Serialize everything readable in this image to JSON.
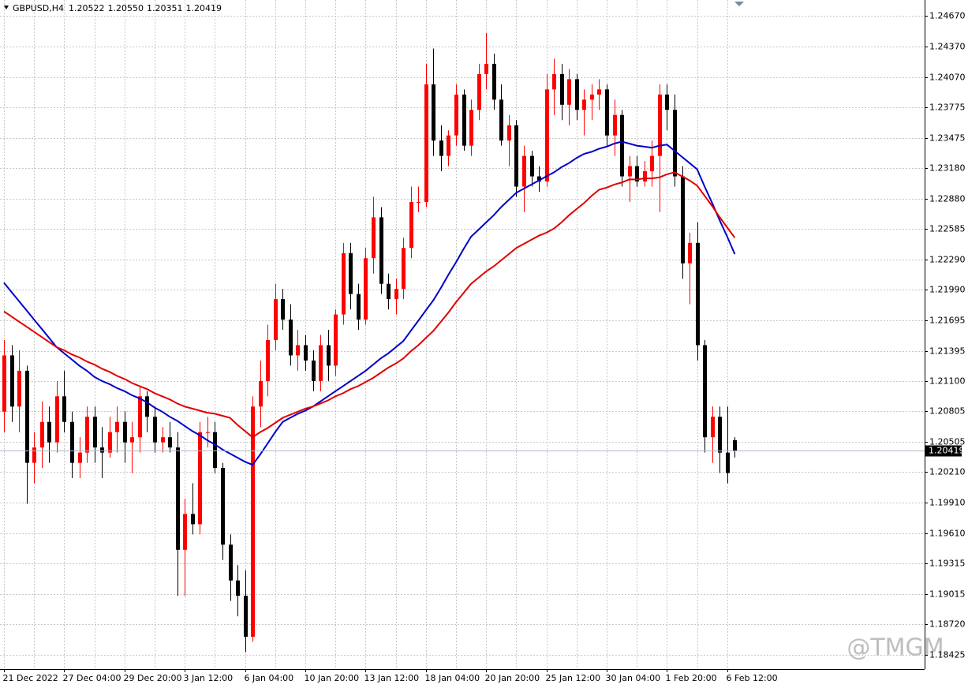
{
  "chart_data": {
    "type": "candlestick",
    "symbol": "GBPUSD,H4",
    "last_ohlc_labels": [
      "1.20522",
      "1.20550",
      "1.20351",
      "1.20419"
    ],
    "watermark": "@TMGM",
    "up_color": "#ff0000",
    "down_color": "#000000",
    "grid": true,
    "ylim": [
      1.18284,
      1.24824
    ],
    "yticks": [
      {
        "value": 1.2467,
        "label": "1.24670"
      },
      {
        "value": 1.2437,
        "label": "1.24370"
      },
      {
        "value": 1.2407,
        "label": "1.24070"
      },
      {
        "value": 1.23775,
        "label": "1.23775"
      },
      {
        "value": 1.23475,
        "label": "1.23475"
      },
      {
        "value": 1.2318,
        "label": "1.23180"
      },
      {
        "value": 1.2288,
        "label": "1.22880"
      },
      {
        "value": 1.22585,
        "label": "1.22585"
      },
      {
        "value": 1.2229,
        "label": "1.22290"
      },
      {
        "value": 1.2199,
        "label": "1.21990"
      },
      {
        "value": 1.21695,
        "label": "1.21695"
      },
      {
        "value": 1.21395,
        "label": "1.21395"
      },
      {
        "value": 1.211,
        "label": "1.21100"
      },
      {
        "value": 1.20805,
        "label": "1.20805"
      },
      {
        "value": 1.20505,
        "label": "1.20505"
      },
      {
        "value": 1.2021,
        "label": "1.20210"
      },
      {
        "value": 1.1991,
        "label": "1.19910"
      },
      {
        "value": 1.1961,
        "label": "1.19610"
      },
      {
        "value": 1.19315,
        "label": "1.19315"
      },
      {
        "value": 1.19015,
        "label": "1.19015"
      },
      {
        "value": 1.1872,
        "label": "1.18720"
      },
      {
        "value": 1.18425,
        "label": "1.18425"
      }
    ],
    "current_price": {
      "value": 1.20419,
      "label": "1.20419"
    },
    "categories": [
      "21 Dec 2022",
      null,
      null,
      null,
      null,
      null,
      null,
      null,
      "27 Dec 04:00",
      null,
      null,
      null,
      null,
      null,
      null,
      null,
      "29 Dec 20:00",
      null,
      null,
      null,
      null,
      null,
      null,
      null,
      "3 Jan 12:00",
      null,
      null,
      null,
      null,
      null,
      null,
      null,
      "6 Jan 04:00",
      null,
      null,
      null,
      null,
      null,
      null,
      null,
      "10 Jan 20:00",
      null,
      null,
      null,
      null,
      null,
      null,
      null,
      "13 Jan 12:00",
      null,
      null,
      null,
      null,
      null,
      null,
      null,
      "18 Jan 04:00",
      null,
      null,
      null,
      null,
      null,
      null,
      null,
      "20 Jan 20:00",
      null,
      null,
      null,
      null,
      null,
      null,
      null,
      "25 Jan 12:00",
      null,
      null,
      null,
      null,
      null,
      null,
      null,
      "30 Jan 04:00",
      null,
      null,
      null,
      null,
      null,
      null,
      null,
      "1 Feb 20:00",
      null,
      null,
      null,
      null,
      null,
      null,
      null,
      "6 Feb 12:00",
      null
    ],
    "open": [
      1.208,
      1.2135,
      1.2085,
      1.212,
      1.203,
      1.2045,
      1.207,
      1.205,
      1.2095,
      1.207,
      1.203,
      1.204,
      1.2075,
      1.2045,
      1.204,
      1.206,
      1.207,
      1.205,
      1.2055,
      1.2095,
      1.2075,
      1.205,
      1.2055,
      1.2045,
      1.1945,
      1.198,
      1.197,
      1.206,
      1.206,
      1.2025,
      1.195,
      1.1915,
      1.19,
      1.186,
      1.2085,
      1.211,
      1.215,
      1.219,
      1.217,
      1.2135,
      1.2145,
      1.213,
      1.211,
      1.2145,
      1.2125,
      1.2175,
      1.2235,
      1.2195,
      1.217,
      1.223,
      1.227,
      1.2205,
      1.219,
      1.22,
      1.224,
      1.2285,
      1.2285,
      1.24,
      1.2345,
      1.233,
      1.235,
      1.239,
      1.234,
      1.2375,
      1.241,
      1.242,
      1.2385,
      1.2345,
      1.236,
      1.23,
      1.233,
      1.231,
      1.2305,
      1.2395,
      1.241,
      1.238,
      1.2405,
      1.2375,
      1.2385,
      1.239,
      1.2395,
      1.235,
      1.237,
      1.231,
      1.232,
      1.2305,
      1.2315,
      1.233,
      1.239,
      1.2375,
      1.231,
      1.2225,
      1.2245,
      1.2145,
      1.2055,
      1.2075,
      1.204,
      1.20522
    ],
    "high": [
      1.215,
      1.2145,
      1.214,
      1.2125,
      1.206,
      1.209,
      1.2085,
      1.211,
      1.212,
      1.208,
      1.2055,
      1.2085,
      1.2085,
      1.2065,
      1.2075,
      1.2085,
      1.208,
      1.207,
      1.2105,
      1.21,
      1.2085,
      1.2065,
      1.207,
      1.206,
      1.1995,
      1.201,
      1.207,
      1.2075,
      1.207,
      1.203,
      1.196,
      1.193,
      1.1925,
      1.2095,
      1.213,
      1.2165,
      1.2205,
      1.22,
      1.2185,
      1.216,
      1.2155,
      1.214,
      1.2155,
      1.216,
      1.218,
      1.2245,
      1.2245,
      1.2205,
      1.224,
      1.229,
      1.228,
      1.2215,
      1.221,
      1.225,
      1.23,
      1.23,
      1.242,
      1.2435,
      1.236,
      1.2355,
      1.24,
      1.2395,
      1.2385,
      1.242,
      1.245,
      1.243,
      1.24,
      1.237,
      1.2365,
      1.234,
      1.2335,
      1.232,
      1.241,
      1.2425,
      1.242,
      1.2415,
      1.241,
      1.2395,
      1.24,
      1.2405,
      1.24,
      1.2385,
      1.2375,
      1.233,
      1.233,
      1.2325,
      1.2345,
      1.24,
      1.24,
      1.239,
      1.232,
      1.2255,
      1.2265,
      1.215,
      1.2085,
      1.2085,
      1.2085,
      1.2055
    ],
    "low": [
      1.206,
      1.207,
      1.206,
      1.199,
      1.201,
      1.2025,
      1.203,
      1.204,
      1.206,
      1.2015,
      1.2015,
      1.203,
      1.203,
      1.2015,
      1.2035,
      1.204,
      1.203,
      1.202,
      1.204,
      1.206,
      1.204,
      1.204,
      1.204,
      1.19,
      1.19,
      1.196,
      1.196,
      1.2045,
      1.202,
      1.1935,
      1.1895,
      1.188,
      1.1845,
      1.1855,
      1.2065,
      1.2095,
      1.214,
      1.216,
      1.2125,
      1.212,
      1.212,
      1.21,
      1.21,
      1.211,
      1.2115,
      1.2165,
      1.218,
      1.216,
      1.2165,
      1.2215,
      1.2195,
      1.218,
      1.2175,
      1.219,
      1.223,
      1.2275,
      1.228,
      1.233,
      1.2315,
      1.232,
      1.234,
      1.2335,
      1.233,
      1.2365,
      1.2395,
      1.2375,
      1.234,
      1.232,
      1.229,
      1.2275,
      1.23,
      1.2295,
      1.23,
      1.237,
      1.2365,
      1.236,
      1.2365,
      1.235,
      1.2365,
      1.2375,
      1.234,
      1.233,
      1.23,
      1.2285,
      1.23,
      1.23,
      1.23,
      1.2275,
      1.2355,
      1.23,
      1.221,
      1.2185,
      1.213,
      1.204,
      1.203,
      1.202,
      1.201,
      1.20351
    ],
    "close": [
      1.2135,
      1.2085,
      1.212,
      1.203,
      1.2045,
      1.207,
      1.205,
      1.2095,
      1.207,
      1.203,
      1.204,
      1.2075,
      1.2045,
      1.204,
      1.206,
      1.207,
      1.205,
      1.2055,
      1.2095,
      1.2075,
      1.205,
      1.2055,
      1.2045,
      1.1945,
      1.198,
      1.197,
      1.206,
      1.206,
      1.2025,
      1.195,
      1.1915,
      1.19,
      1.186,
      1.2085,
      1.211,
      1.215,
      1.219,
      1.217,
      1.2135,
      1.2145,
      1.213,
      1.211,
      1.2145,
      1.2125,
      1.2175,
      1.2235,
      1.2195,
      1.217,
      1.223,
      1.227,
      1.2205,
      1.219,
      1.22,
      1.224,
      1.2285,
      1.2285,
      1.24,
      1.2345,
      1.233,
      1.235,
      1.239,
      1.234,
      1.2375,
      1.241,
      1.242,
      1.2385,
      1.2345,
      1.236,
      1.23,
      1.233,
      1.231,
      1.2305,
      1.2395,
      1.241,
      1.238,
      1.2405,
      1.2375,
      1.2385,
      1.239,
      1.2395,
      1.235,
      1.237,
      1.231,
      1.232,
      1.2305,
      1.2315,
      1.233,
      1.239,
      1.2375,
      1.231,
      1.2225,
      1.2245,
      1.2145,
      1.2055,
      1.2075,
      1.204,
      1.202,
      1.20419
    ],
    "series": [
      {
        "color": "#0000c8",
        "values": [
          1.2206,
          1.2197,
          1.2188,
          1.2179,
          1.217,
          1.2161,
          1.2152,
          1.2143,
          1.2137,
          1.2131,
          1.2125,
          1.212,
          1.2114,
          1.211,
          1.2107,
          1.2103,
          1.21,
          1.2096,
          1.2093,
          1.2089,
          1.2084,
          1.208,
          1.2075,
          1.2071,
          1.2066,
          1.2061,
          1.2057,
          1.2052,
          1.2048,
          1.2043,
          1.2039,
          1.2035,
          1.2031,
          1.2028,
          1.2038,
          1.2049,
          1.206,
          1.207,
          1.2074,
          1.2078,
          1.2081,
          1.2085,
          1.209,
          1.2095,
          1.21,
          1.2105,
          1.211,
          1.2115,
          1.212,
          1.2126,
          1.2132,
          1.2137,
          1.2143,
          1.2149,
          1.2159,
          1.2169,
          1.2179,
          1.2189,
          1.2201,
          1.2214,
          1.2226,
          1.2239,
          1.2251,
          1.2258,
          1.2265,
          1.2272,
          1.228,
          1.2287,
          1.2294,
          1.2298,
          1.2302,
          1.2306,
          1.231,
          1.2314,
          1.2319,
          1.2323,
          1.2328,
          1.2332,
          1.2334,
          1.2337,
          1.2339,
          1.2342,
          1.2344,
          1.2342,
          1.234,
          1.2339,
          1.2338,
          1.234,
          1.2341,
          1.2335,
          1.2329,
          1.2323,
          1.2317,
          1.23,
          1.2284,
          1.2267,
          1.2251,
          1.2234
        ]
      },
      {
        "color": "#e00000",
        "values": [
          1.2178,
          1.2173,
          1.2168,
          1.2163,
          1.2158,
          1.2153,
          1.2148,
          1.2143,
          1.214,
          1.2136,
          1.2133,
          1.2129,
          1.2126,
          1.2122,
          1.2119,
          1.2115,
          1.2112,
          1.2108,
          1.2105,
          1.2102,
          1.2098,
          1.2095,
          1.2092,
          1.2088,
          1.2085,
          1.2083,
          1.2081,
          1.2079,
          1.2078,
          1.2076,
          1.2074,
          1.2067,
          1.2061,
          1.2055,
          1.206,
          1.2064,
          1.2069,
          1.2074,
          1.2077,
          1.208,
          1.2083,
          1.2085,
          1.2088,
          1.2091,
          1.2095,
          1.2098,
          1.2102,
          1.2105,
          1.2109,
          1.2113,
          1.2118,
          1.2123,
          1.2127,
          1.2132,
          1.2139,
          1.2145,
          1.2152,
          1.2159,
          1.2168,
          1.2177,
          1.2187,
          1.2196,
          1.2205,
          1.2211,
          1.2217,
          1.2222,
          1.2228,
          1.2234,
          1.224,
          1.2244,
          1.2248,
          1.2252,
          1.2255,
          1.2259,
          1.2265,
          1.2272,
          1.2278,
          1.2284,
          1.2291,
          1.2297,
          1.2299,
          1.2302,
          1.2304,
          1.2307,
          1.2307,
          1.2308,
          1.2308,
          1.2309,
          1.2312,
          1.2314,
          1.231,
          1.2306,
          1.2301,
          1.2291,
          1.2281,
          1.227,
          1.226,
          1.225
        ]
      }
    ]
  }
}
